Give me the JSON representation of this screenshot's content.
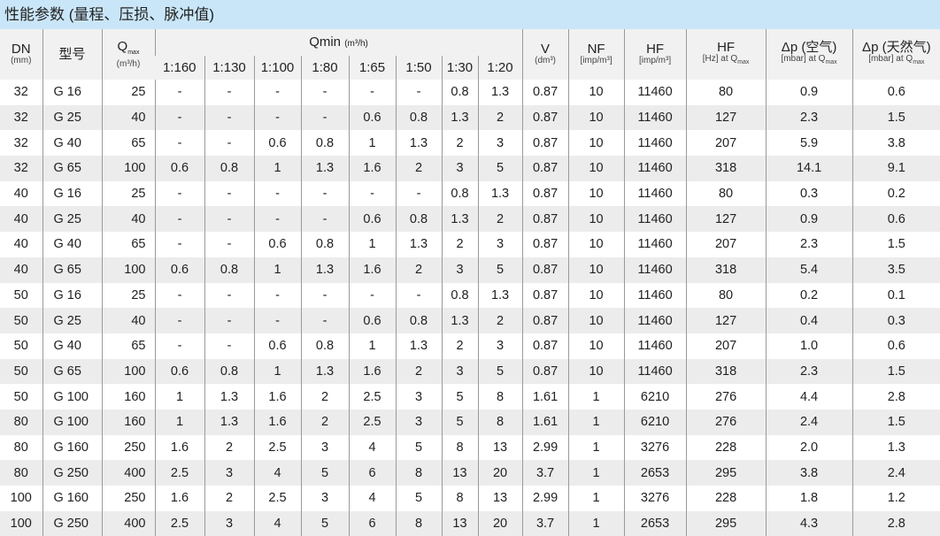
{
  "title": "性能参数 (量程、压损、脉冲值)",
  "headers": {
    "dn": "DN",
    "dn_unit": "(mm)",
    "model": "型号",
    "qmax": "Q",
    "qmax_sub": "max",
    "qmax_unit": "(m³/h)",
    "qmin": "Qmin",
    "qmin_unit": "(m³/h)",
    "ratios": [
      "1:160",
      "1:130",
      "1:100",
      "1:80",
      "1:65",
      "1:50",
      "1:30",
      "1:20"
    ],
    "v": "V",
    "v_unit": "(dm³)",
    "nf": "NF",
    "nf_unit": "[imp/m³]",
    "hf": "HF",
    "hf_unit": "[imp/m³]",
    "hf_hz": "HF",
    "hf_hz_unit": "[Hz] at Q",
    "hf_hz_sub": "max",
    "dp_air": "Δp (空气)",
    "dp_air_unit": "[mbar] at Q",
    "dp_air_sub": "max",
    "dp_gas": "Δp (天然气)",
    "dp_gas_unit": "[mbar] at Q",
    "dp_gas_sub": "max"
  },
  "rows": [
    [
      "32",
      "G 16",
      "25",
      "-",
      "-",
      "-",
      "-",
      "-",
      "-",
      "0.8",
      "1.3",
      "0.87",
      "10",
      "11460",
      "80",
      "0.9",
      "0.6"
    ],
    [
      "32",
      "G 25",
      "40",
      "-",
      "-",
      "-",
      "-",
      "0.6",
      "0.8",
      "1.3",
      "2",
      "0.87",
      "10",
      "11460",
      "127",
      "2.3",
      "1.5"
    ],
    [
      "32",
      "G 40",
      "65",
      "-",
      "-",
      "0.6",
      "0.8",
      "1",
      "1.3",
      "2",
      "3",
      "0.87",
      "10",
      "11460",
      "207",
      "5.9",
      "3.8"
    ],
    [
      "32",
      "G 65",
      "100",
      "0.6",
      "0.8",
      "1",
      "1.3",
      "1.6",
      "2",
      "3",
      "5",
      "0.87",
      "10",
      "11460",
      "318",
      "14.1",
      "9.1"
    ],
    [
      "40",
      "G 16",
      "25",
      "-",
      "-",
      "-",
      "-",
      "-",
      "-",
      "0.8",
      "1.3",
      "0.87",
      "10",
      "11460",
      "80",
      "0.3",
      "0.2"
    ],
    [
      "40",
      "G 25",
      "40",
      "-",
      "-",
      "-",
      "-",
      "0.6",
      "0.8",
      "1.3",
      "2",
      "0.87",
      "10",
      "11460",
      "127",
      "0.9",
      "0.6"
    ],
    [
      "40",
      "G 40",
      "65",
      "-",
      "-",
      "0.6",
      "0.8",
      "1",
      "1.3",
      "2",
      "3",
      "0.87",
      "10",
      "11460",
      "207",
      "2.3",
      "1.5"
    ],
    [
      "40",
      "G 65",
      "100",
      "0.6",
      "0.8",
      "1",
      "1.3",
      "1.6",
      "2",
      "3",
      "5",
      "0.87",
      "10",
      "11460",
      "318",
      "5.4",
      "3.5"
    ],
    [
      "50",
      "G 16",
      "25",
      "-",
      "-",
      "-",
      "-",
      "-",
      "-",
      "0.8",
      "1.3",
      "0.87",
      "10",
      "11460",
      "80",
      "0.2",
      "0.1"
    ],
    [
      "50",
      "G 25",
      "40",
      "-",
      "-",
      "-",
      "-",
      "0.6",
      "0.8",
      "1.3",
      "2",
      "0.87",
      "10",
      "11460",
      "127",
      "0.4",
      "0.3"
    ],
    [
      "50",
      "G 40",
      "65",
      "-",
      "-",
      "0.6",
      "0.8",
      "1",
      "1.3",
      "2",
      "3",
      "0.87",
      "10",
      "11460",
      "207",
      "1.0",
      "0.6"
    ],
    [
      "50",
      "G 65",
      "100",
      "0.6",
      "0.8",
      "1",
      "1.3",
      "1.6",
      "2",
      "3",
      "5",
      "0.87",
      "10",
      "11460",
      "318",
      "2.3",
      "1.5"
    ],
    [
      "50",
      "G 100",
      "160",
      "1",
      "1.3",
      "1.6",
      "2",
      "2.5",
      "3",
      "5",
      "8",
      "1.61",
      "1",
      "6210",
      "276",
      "4.4",
      "2.8"
    ],
    [
      "80",
      "G 100",
      "160",
      "1",
      "1.3",
      "1.6",
      "2",
      "2.5",
      "3",
      "5",
      "8",
      "1.61",
      "1",
      "6210",
      "276",
      "2.4",
      "1.5"
    ],
    [
      "80",
      "G 160",
      "250",
      "1.6",
      "2",
      "2.5",
      "3",
      "4",
      "5",
      "8",
      "13",
      "2.99",
      "1",
      "3276",
      "228",
      "2.0",
      "1.3"
    ],
    [
      "80",
      "G 250",
      "400",
      "2.5",
      "3",
      "4",
      "5",
      "6",
      "8",
      "13",
      "20",
      "3.7",
      "1",
      "2653",
      "295",
      "3.8",
      "2.4"
    ],
    [
      "100",
      "G 160",
      "250",
      "1.6",
      "2",
      "2.5",
      "3",
      "4",
      "5",
      "8",
      "13",
      "2.99",
      "1",
      "3276",
      "228",
      "1.8",
      "1.2"
    ],
    [
      "100",
      "G 250",
      "400",
      "2.5",
      "3",
      "4",
      "5",
      "6",
      "8",
      "13",
      "20",
      "3.7",
      "1",
      "2653",
      "295",
      "4.3",
      "2.8"
    ]
  ]
}
